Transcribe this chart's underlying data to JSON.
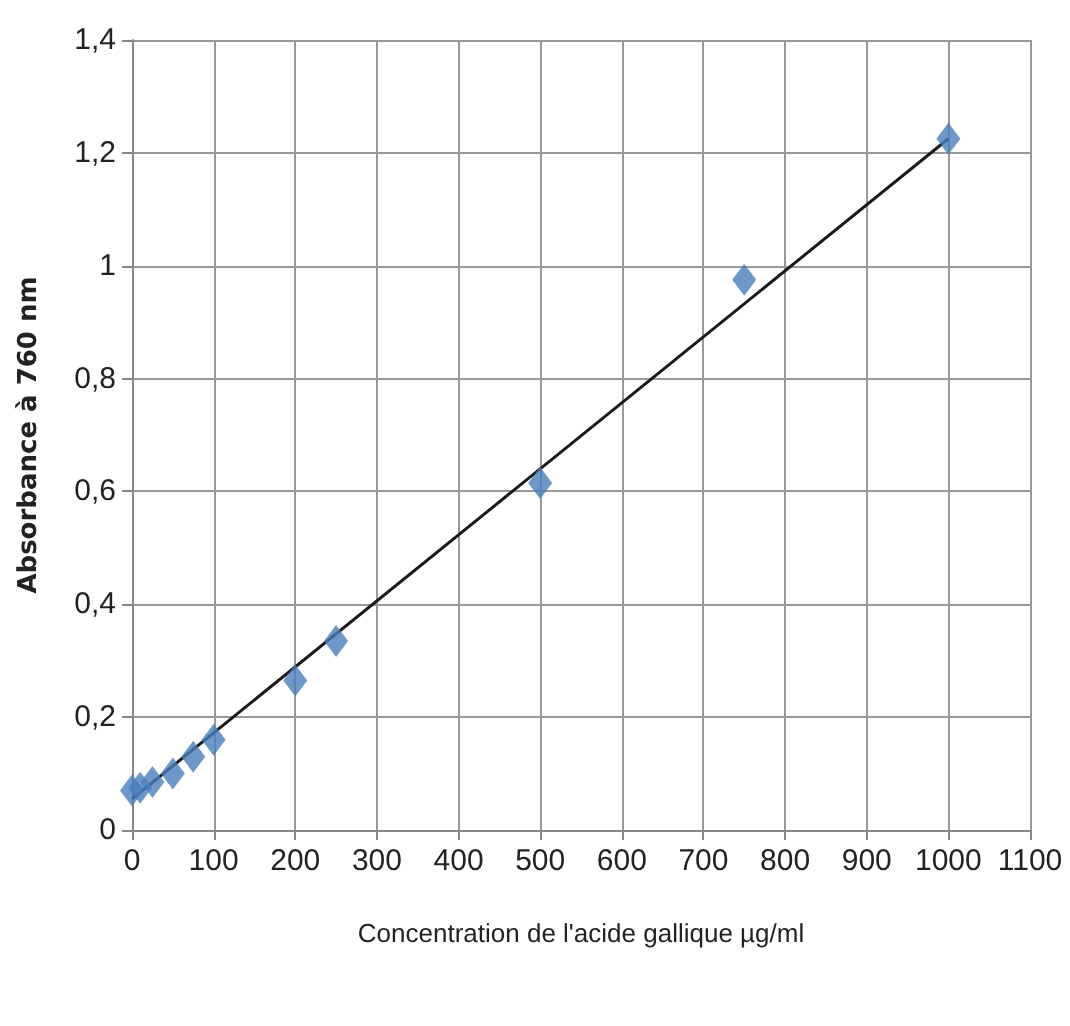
{
  "chart_data": {
    "type": "scatter",
    "xlabel": "Concentration de l'acide gallique µg/ml",
    "ylabel": "Absorbance à 760 nm",
    "series": [
      {
        "color": "#4a7ebb",
        "marker": "diamond",
        "x": [
          0,
          10,
          25,
          50,
          75,
          100,
          200,
          250,
          500,
          750,
          1000
        ],
        "values": [
          0.07,
          0.075,
          0.085,
          0.1,
          0.13,
          0.16,
          0.265,
          0.335,
          0.615,
          0.975,
          1.225
        ]
      },
      {
        "type": "line",
        "color": "#1a1a1a",
        "marker": "none",
        "x": [
          0,
          1000
        ],
        "values": [
          0.055,
          1.225
        ]
      }
    ],
    "xlim": [
      0,
      1100
    ],
    "xticks": [
      0,
      100,
      200,
      300,
      400,
      500,
      600,
      700,
      800,
      900,
      1000,
      1100
    ],
    "ylim": [
      0,
      1.4
    ],
    "yticks": [
      0,
      {
        "value": 0.2,
        "label": "0,2"
      },
      {
        "value": 0.4,
        "label": "0,4"
      },
      {
        "value": 0.6,
        "label": "0,6"
      },
      {
        "value": 0.8,
        "label": "0,8"
      },
      1,
      {
        "value": 1.2,
        "label": "1,2"
      },
      {
        "value": 1.4,
        "label": "1,4"
      }
    ],
    "grid": true
  }
}
